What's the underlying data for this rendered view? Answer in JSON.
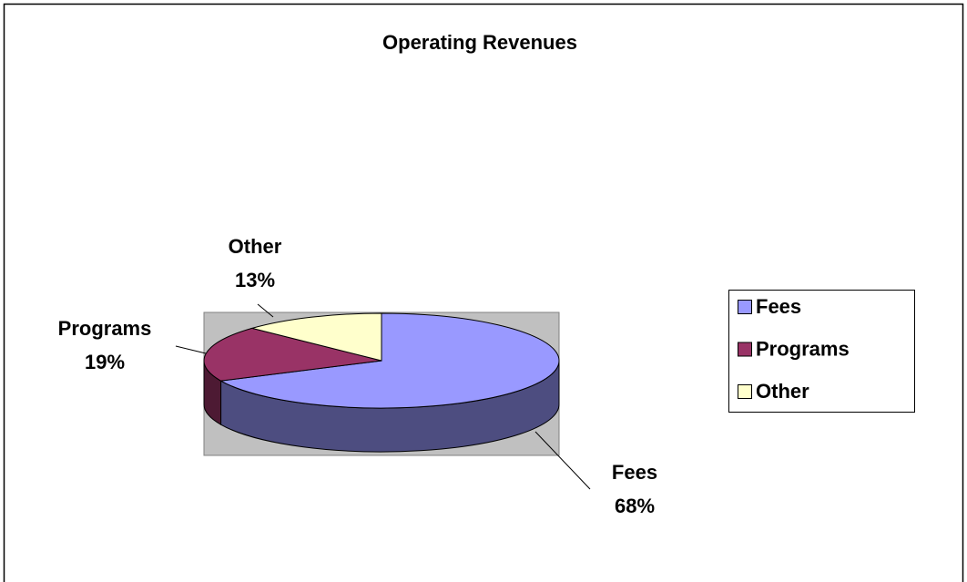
{
  "chart_data": {
    "type": "pie",
    "title": "Operating Revenues",
    "categories": [
      "Fees",
      "Programs",
      "Other"
    ],
    "values": [
      68,
      19,
      13
    ],
    "value_labels": [
      "68%",
      "19%",
      "13%"
    ],
    "colors": [
      "#9999ff",
      "#993366",
      "#ffffcc"
    ],
    "side_colors": [
      "#4d4d80",
      "#4d1a33",
      "#80806a"
    ],
    "legend": "right"
  }
}
